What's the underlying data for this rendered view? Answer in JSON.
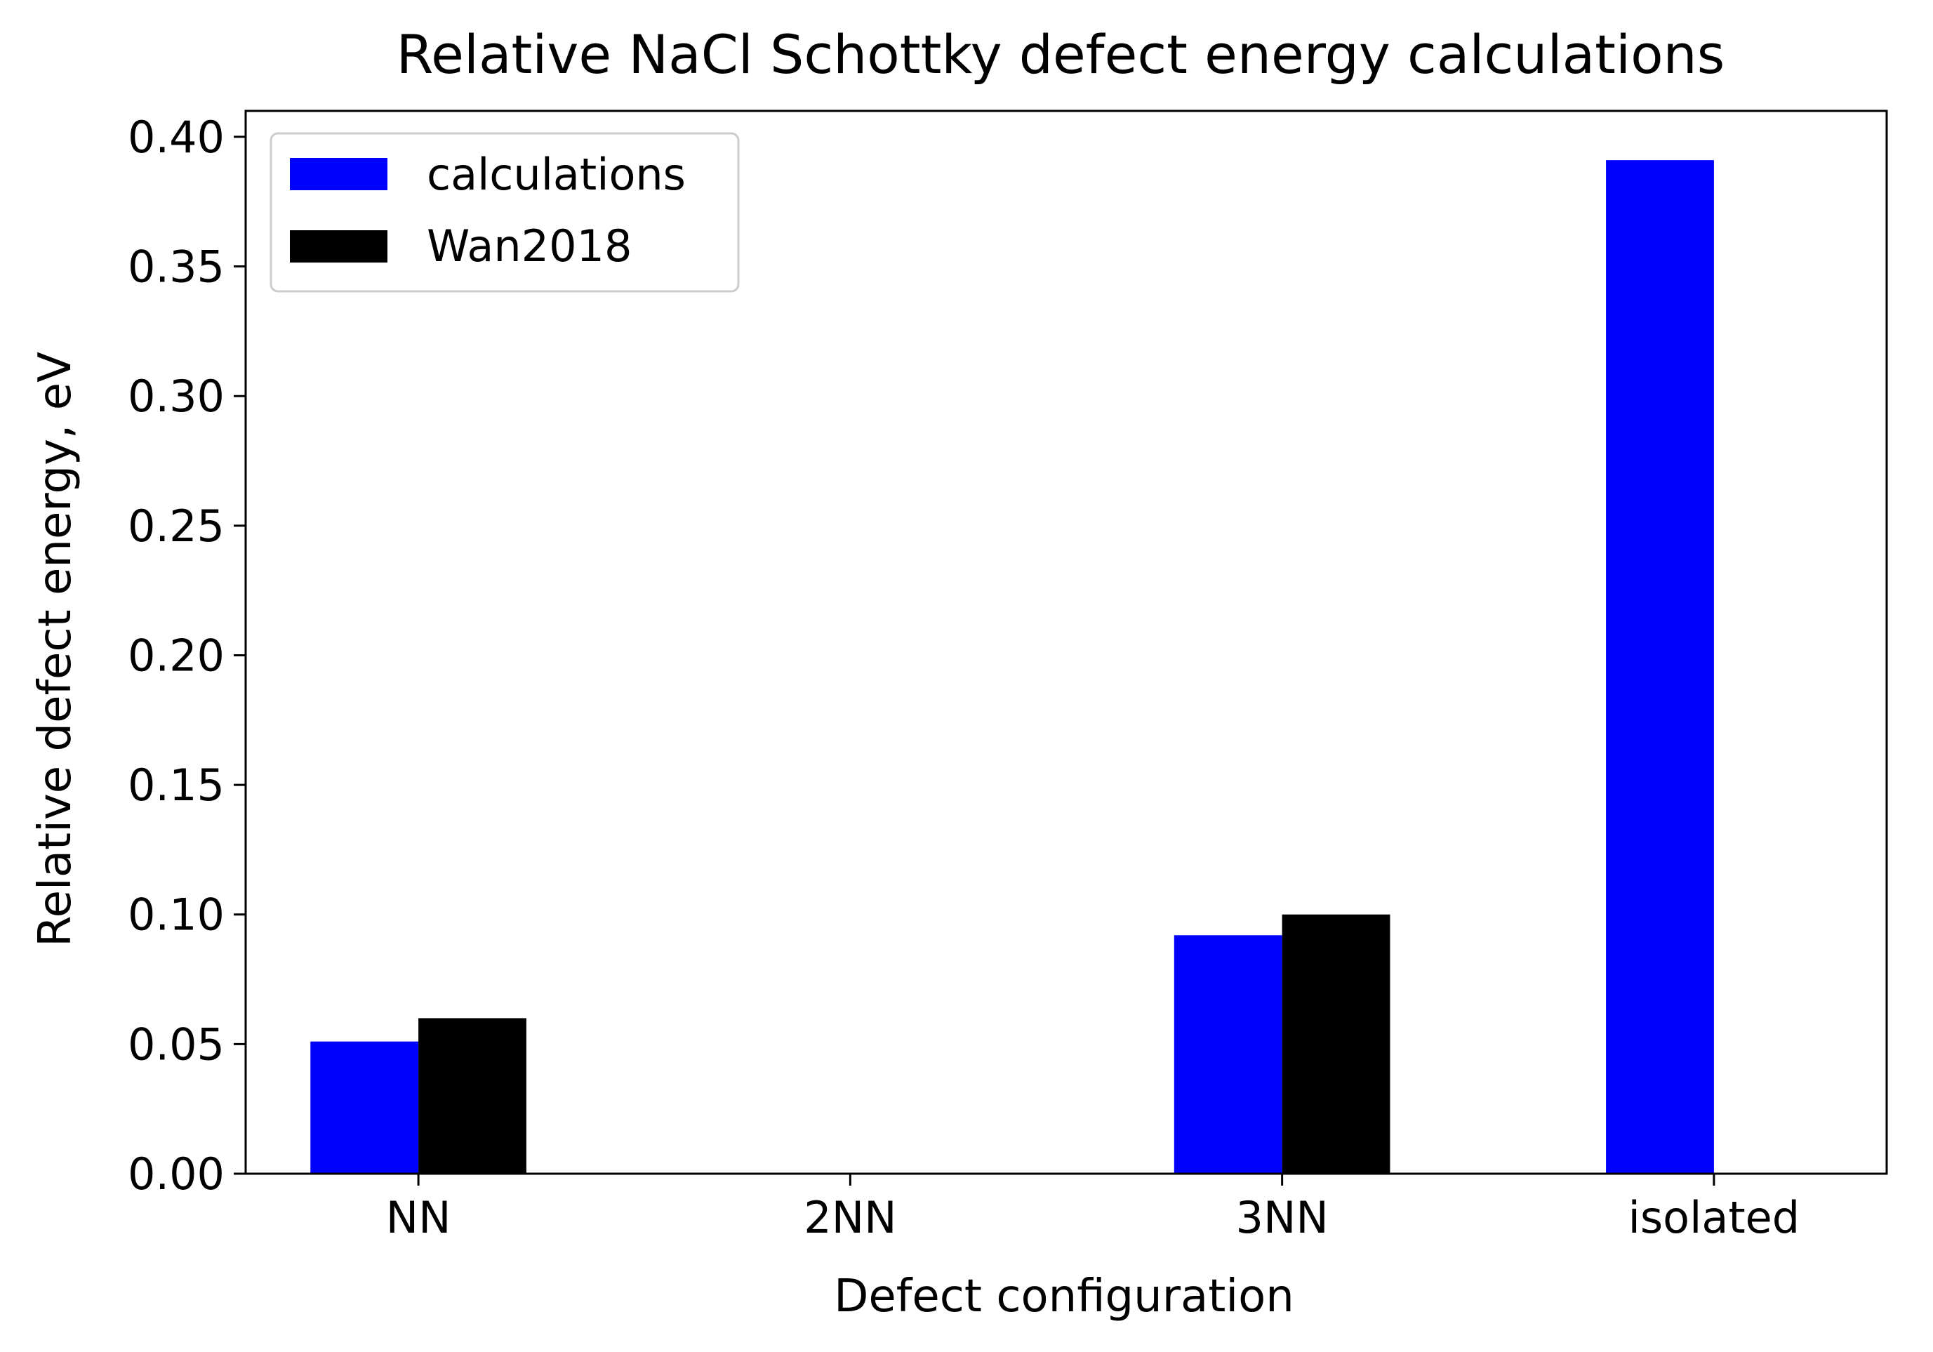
{
  "chart_data": {
    "type": "bar",
    "title": "Relative NaCl Schottky defect energy calculations",
    "xlabel": "Defect configuration",
    "ylabel": "Relative defect energy, eV",
    "categories": [
      "NN",
      "2NN",
      "3NN",
      "isolated"
    ],
    "series": [
      {
        "name": "calculations",
        "color": "#0000ff",
        "values": [
          0.051,
          0.0,
          0.092,
          0.391
        ]
      },
      {
        "name": "Wan2018",
        "color": "#000000",
        "values": [
          0.06,
          0.0,
          0.1,
          null
        ]
      }
    ],
    "ylim": [
      0.0,
      0.41
    ],
    "yticks": [
      "0.00",
      "0.05",
      "0.10",
      "0.15",
      "0.20",
      "0.25",
      "0.30",
      "0.35",
      "0.40"
    ],
    "grid": false,
    "legend_position": "top-left"
  }
}
